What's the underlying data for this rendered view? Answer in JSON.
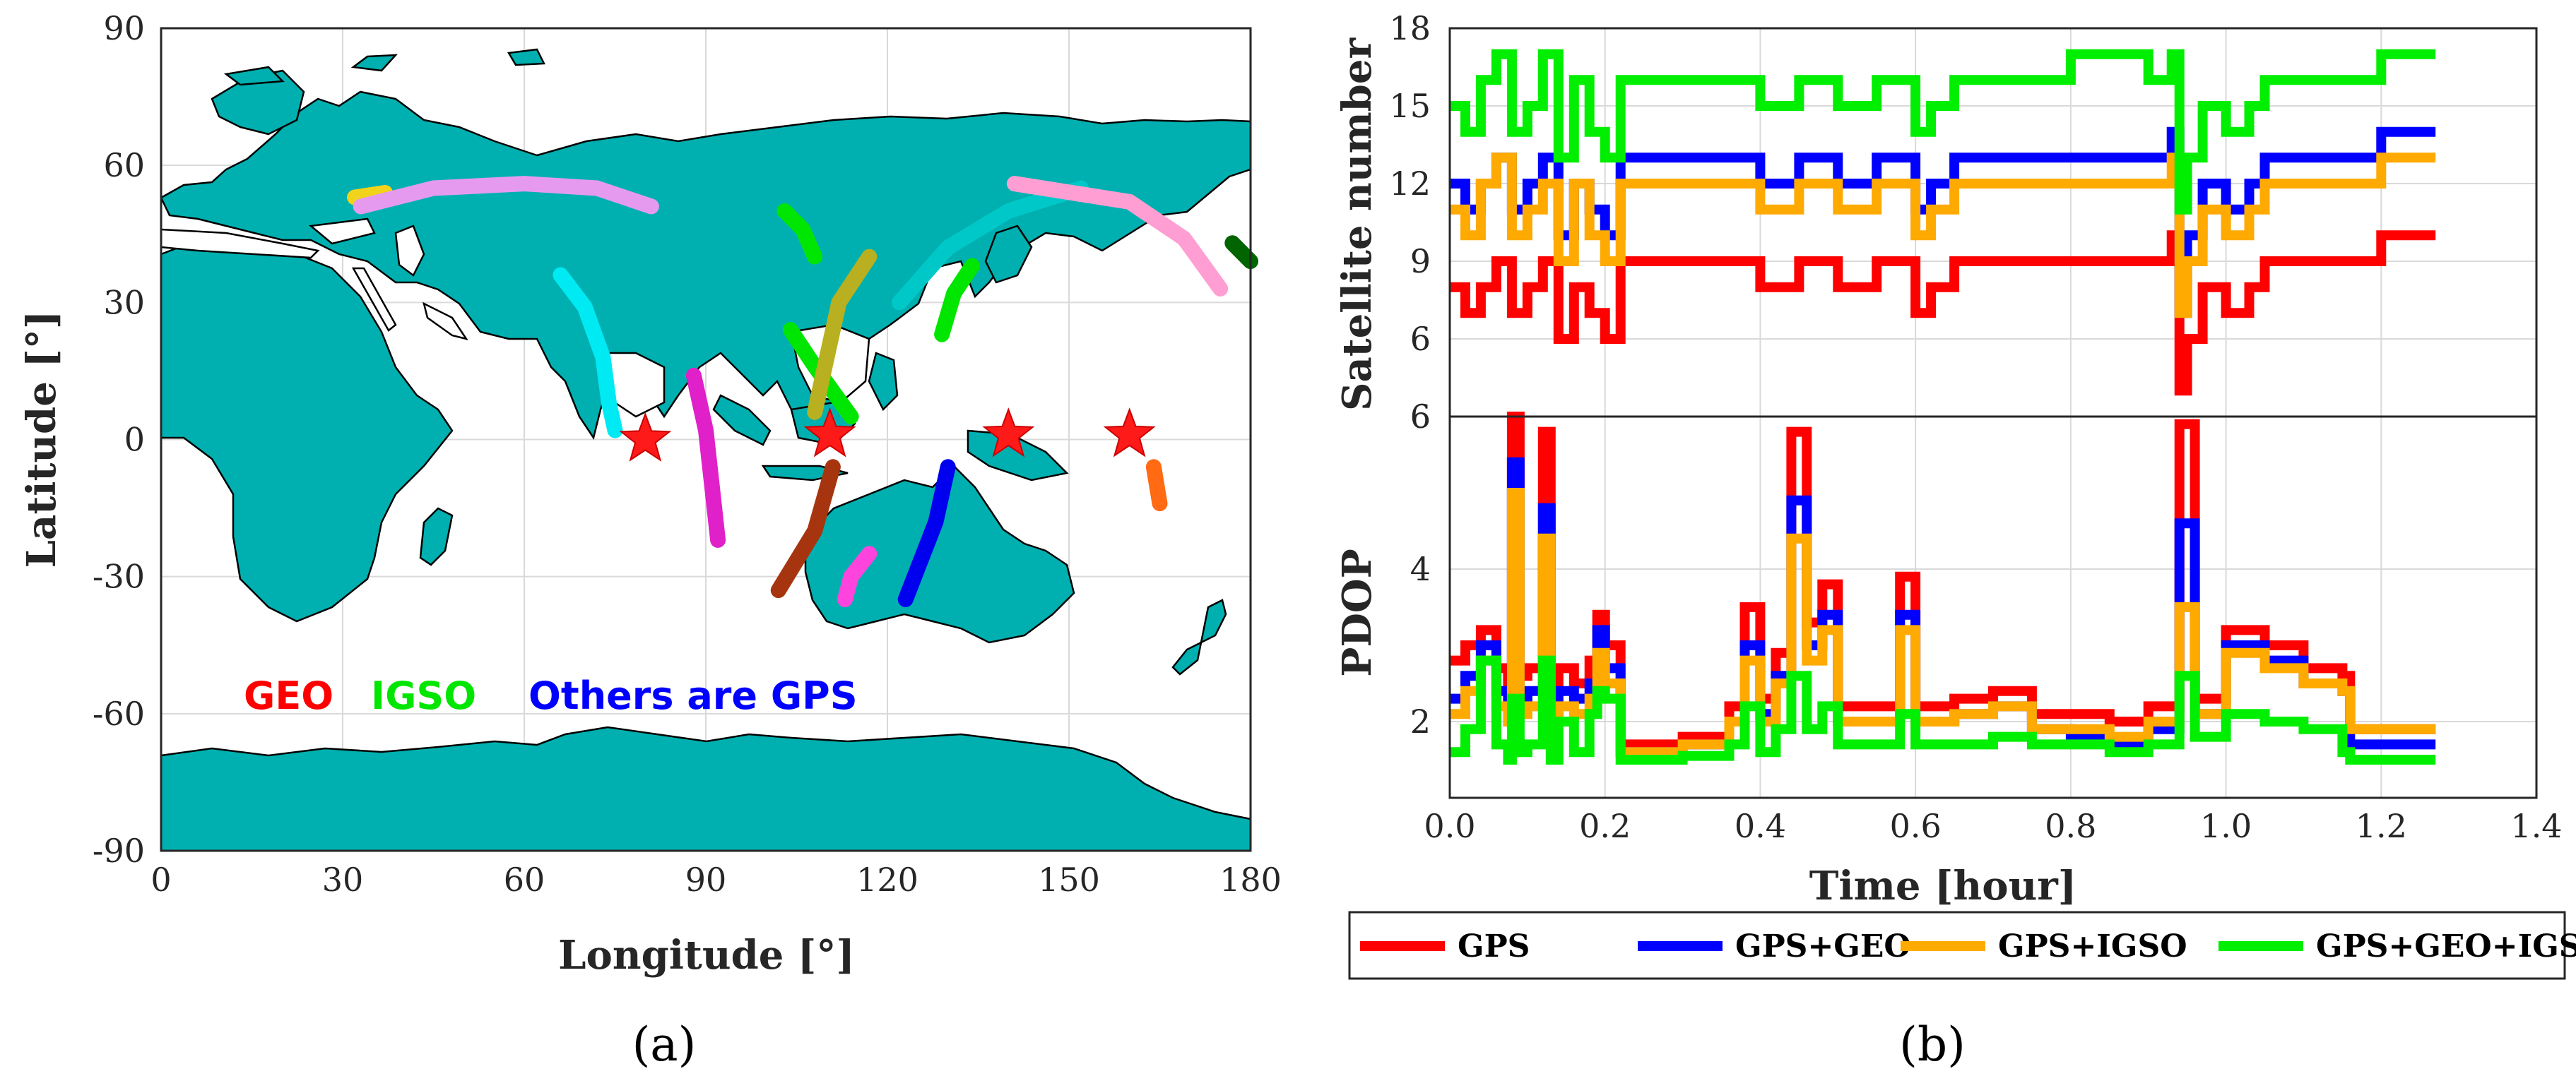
{
  "chart_data": [
    {
      "panel": "(a)",
      "type": "scatter",
      "subtype": "map",
      "xlabel": "Longitude [°]",
      "ylabel": "Latitude [°]",
      "xlim": [
        0,
        180
      ],
      "ylim": [
        -90,
        90
      ],
      "xticks": [
        "0",
        "30",
        "60",
        "90",
        "120",
        "150",
        "180"
      ],
      "yticks": [
        "90",
        "60",
        "30",
        "0",
        "-30",
        "-60",
        "-90"
      ],
      "legend": [
        {
          "label": "GEO",
          "color": "#ff0000"
        },
        {
          "label": "IGSO",
          "color": "#00e600"
        },
        {
          "label": "Others are GPS",
          "color": "#0000ff"
        }
      ],
      "geo_satellites": [
        {
          "lon": 80,
          "lat": 0
        },
        {
          "lon": 110.5,
          "lat": 1
        },
        {
          "lon": 140,
          "lat": 1
        },
        {
          "lon": 160,
          "lat": 1
        }
      ],
      "ground_tracks": [
        {
          "color": "#f2d31b",
          "points": [
            [
              32,
              53
            ],
            [
              37,
              54
            ]
          ]
        },
        {
          "color": "#e59af0",
          "points": [
            [
              33,
              51
            ],
            [
              45,
              55
            ],
            [
              60,
              56
            ],
            [
              72,
              55
            ],
            [
              81,
              51
            ]
          ]
        },
        {
          "color": "#00eaf4",
          "points": [
            [
              66,
              36
            ],
            [
              70,
              29
            ],
            [
              73,
              18
            ],
            [
              74,
              8
            ],
            [
              75,
              2
            ]
          ]
        },
        {
          "color": "#e020c8",
          "points": [
            [
              88,
              14
            ],
            [
              90,
              2
            ],
            [
              91,
              -10
            ],
            [
              92,
              -22
            ]
          ]
        },
        {
          "color": "#00e600",
          "points": [
            [
              103,
              50
            ],
            [
              106,
              46
            ],
            [
              108,
              40
            ]
          ]
        },
        {
          "color": "#00e600",
          "points": [
            [
              104,
              24
            ],
            [
              108,
              16
            ],
            [
              114,
              5
            ]
          ]
        },
        {
          "color": "#b8b020",
          "points": [
            [
              117,
              40
            ],
            [
              112,
              30
            ],
            [
              108,
              6
            ]
          ]
        },
        {
          "color": "#00c8c8",
          "points": [
            [
              122,
              30
            ],
            [
              130,
              42
            ],
            [
              140,
              50
            ],
            [
              152,
              55
            ]
          ]
        },
        {
          "color": "#ff9ed2",
          "points": [
            [
              141,
              56
            ],
            [
              160,
              52
            ],
            [
              169,
              44
            ],
            [
              175,
              33
            ]
          ]
        },
        {
          "color": "#00e600",
          "points": [
            [
              134,
              38
            ],
            [
              131,
              32
            ],
            [
              129,
              23
            ]
          ]
        },
        {
          "color": "#006400",
          "points": [
            [
              177,
              43
            ],
            [
              180,
              39
            ]
          ]
        },
        {
          "color": "#a6350f",
          "points": [
            [
              111,
              -6
            ],
            [
              108,
              -20
            ],
            [
              102,
              -33
            ]
          ]
        },
        {
          "color": "#ff44dd",
          "points": [
            [
              117,
              -25
            ],
            [
              114,
              -30
            ],
            [
              113,
              -35
            ]
          ]
        },
        {
          "color": "#0000ee",
          "points": [
            [
              130,
              -6
            ],
            [
              128,
              -18
            ],
            [
              123,
              -35
            ]
          ]
        },
        {
          "color": "#ff6a13",
          "points": [
            [
              164,
              -6
            ],
            [
              165,
              -14
            ]
          ]
        }
      ]
    },
    {
      "panel": "(b)",
      "type": "line",
      "subplot": "top",
      "ylabel": "Satellite number",
      "xlim": [
        0,
        1.4
      ],
      "ylim": [
        3,
        18
      ],
      "yticks": [
        "18",
        "15",
        "12",
        "9",
        "6",
        "6"
      ],
      "series": [
        {
          "name": "GPS",
          "color": "#ff0000",
          "x": [
            0.0,
            0.02,
            0.04,
            0.06,
            0.08,
            0.1,
            0.12,
            0.14,
            0.16,
            0.18,
            0.2,
            0.22,
            0.24,
            0.3,
            0.35,
            0.4,
            0.45,
            0.5,
            0.55,
            0.6,
            0.62,
            0.65,
            0.7,
            0.75,
            0.8,
            0.85,
            0.9,
            0.93,
            0.94,
            0.95,
            0.97,
            1.0,
            1.03,
            1.05,
            1.1,
            1.15,
            1.2,
            1.27
          ],
          "values": [
            8,
            7,
            8,
            9,
            7,
            8,
            9,
            6,
            8,
            7,
            6,
            9,
            9,
            9,
            9,
            8,
            9,
            8,
            9,
            7,
            8,
            9,
            9,
            9,
            9,
            9,
            9,
            10,
            4,
            6,
            8,
            7,
            8,
            9,
            9,
            9,
            10,
            10
          ]
        },
        {
          "name": "GPS+GEO",
          "color": "#0000ff",
          "x": [
            0.0,
            0.02,
            0.04,
            0.06,
            0.08,
            0.1,
            0.12,
            0.14,
            0.16,
            0.18,
            0.2,
            0.22,
            0.24,
            0.3,
            0.35,
            0.4,
            0.45,
            0.5,
            0.55,
            0.6,
            0.62,
            0.65,
            0.7,
            0.75,
            0.8,
            0.85,
            0.9,
            0.93,
            0.94,
            0.95,
            0.97,
            1.0,
            1.03,
            1.05,
            1.1,
            1.15,
            1.2,
            1.27
          ],
          "values": [
            12,
            11,
            12,
            13,
            11,
            12,
            13,
            10,
            12,
            11,
            10,
            13,
            13,
            13,
            13,
            12,
            13,
            12,
            13,
            11,
            12,
            13,
            13,
            13,
            13,
            13,
            13,
            14,
            7,
            10,
            12,
            11,
            12,
            13,
            13,
            13,
            14,
            14
          ]
        },
        {
          "name": "GPS+IGSO",
          "color": "#ffaa00",
          "x": [
            0.0,
            0.02,
            0.04,
            0.06,
            0.08,
            0.1,
            0.12,
            0.14,
            0.16,
            0.18,
            0.2,
            0.22,
            0.24,
            0.3,
            0.35,
            0.4,
            0.45,
            0.5,
            0.55,
            0.6,
            0.62,
            0.65,
            0.7,
            0.75,
            0.8,
            0.85,
            0.9,
            0.93,
            0.94,
            0.95,
            0.97,
            1.0,
            1.03,
            1.05,
            1.1,
            1.15,
            1.2,
            1.27
          ],
          "values": [
            11,
            10,
            12,
            13,
            10,
            11,
            12,
            9,
            12,
            10,
            9,
            12,
            12,
            12,
            12,
            11,
            12,
            11,
            12,
            10,
            11,
            12,
            12,
            12,
            12,
            12,
            12,
            13,
            7,
            9,
            11,
            10,
            11,
            12,
            12,
            12,
            13,
            13
          ]
        },
        {
          "name": "GPS+GEO+IGSO",
          "color": "#00ee00",
          "x": [
            0.0,
            0.02,
            0.04,
            0.06,
            0.08,
            0.1,
            0.12,
            0.14,
            0.16,
            0.18,
            0.2,
            0.22,
            0.24,
            0.3,
            0.35,
            0.4,
            0.45,
            0.5,
            0.55,
            0.6,
            0.62,
            0.65,
            0.7,
            0.75,
            0.8,
            0.85,
            0.9,
            0.93,
            0.94,
            0.95,
            0.97,
            1.0,
            1.03,
            1.05,
            1.1,
            1.15,
            1.2,
            1.27
          ],
          "values": [
            15,
            14,
            16,
            17,
            14,
            15,
            17,
            13,
            16,
            14,
            13,
            16,
            16,
            16,
            16,
            15,
            16,
            15,
            16,
            14,
            15,
            16,
            16,
            16,
            17,
            17,
            16,
            17,
            11,
            13,
            15,
            14,
            15,
            16,
            16,
            16,
            17,
            17
          ]
        }
      ]
    },
    {
      "panel": "(b)",
      "type": "line",
      "subplot": "bottom",
      "xlabel": "Time [hour]",
      "ylabel": "PDOP",
      "xlim": [
        0,
        1.4
      ],
      "ylim": [
        1,
        6
      ],
      "xticks": [
        "0.0",
        "0.2",
        "0.4",
        "0.6",
        "0.8",
        "1.0",
        "1.2",
        "1.4"
      ],
      "yticks": [
        "6",
        "4",
        "2"
      ],
      "legend_position": "bottom",
      "series": [
        {
          "name": "GPS",
          "color": "#ff0000",
          "x": [
            0.0,
            0.02,
            0.04,
            0.06,
            0.075,
            0.08,
            0.09,
            0.1,
            0.12,
            0.13,
            0.14,
            0.16,
            0.18,
            0.19,
            0.2,
            0.22,
            0.3,
            0.36,
            0.38,
            0.4,
            0.42,
            0.44,
            0.46,
            0.48,
            0.5,
            0.55,
            0.58,
            0.6,
            0.65,
            0.7,
            0.75,
            0.8,
            0.85,
            0.9,
            0.94,
            0.96,
            1.0,
            1.05,
            1.1,
            1.15,
            1.16,
            1.2,
            1.27
          ],
          "values": [
            2.8,
            3.0,
            3.2,
            2.7,
            2.5,
            6.0,
            2.6,
            2.7,
            5.8,
            2.4,
            2.7,
            2.5,
            2.8,
            3.4,
            3.0,
            1.7,
            1.8,
            2.2,
            3.5,
            2.3,
            2.9,
            5.8,
            3.3,
            3.8,
            2.2,
            2.2,
            3.9,
            2.2,
            2.3,
            2.4,
            2.1,
            2.1,
            2.0,
            2.2,
            5.9,
            2.3,
            3.2,
            3.0,
            2.7,
            2.6,
            1.9,
            1.9,
            1.9
          ]
        },
        {
          "name": "GPS+GEO",
          "color": "#0000ff",
          "x": [
            0.0,
            0.02,
            0.04,
            0.06,
            0.075,
            0.08,
            0.09,
            0.1,
            0.12,
            0.13,
            0.14,
            0.16,
            0.18,
            0.19,
            0.2,
            0.22,
            0.3,
            0.36,
            0.38,
            0.4,
            0.42,
            0.44,
            0.46,
            0.48,
            0.5,
            0.55,
            0.58,
            0.6,
            0.65,
            0.7,
            0.75,
            0.8,
            0.85,
            0.9,
            0.94,
            0.96,
            1.0,
            1.05,
            1.1,
            1.15,
            1.16,
            1.2,
            1.27
          ],
          "values": [
            2.3,
            2.6,
            3.0,
            2.4,
            2.2,
            5.4,
            2.3,
            2.4,
            4.8,
            2.1,
            2.4,
            2.3,
            2.5,
            3.2,
            2.7,
            1.6,
            1.7,
            2.0,
            3.0,
            2.1,
            2.6,
            4.9,
            3.0,
            3.4,
            2.0,
            2.0,
            3.4,
            2.0,
            2.1,
            2.2,
            1.9,
            1.8,
            1.7,
            1.9,
            4.6,
            2.1,
            3.0,
            2.8,
            2.5,
            2.4,
            1.7,
            1.7,
            1.7
          ]
        },
        {
          "name": "GPS+IGSO",
          "color": "#ffaa00",
          "x": [
            0.0,
            0.02,
            0.04,
            0.06,
            0.075,
            0.08,
            0.09,
            0.1,
            0.12,
            0.13,
            0.14,
            0.16,
            0.18,
            0.19,
            0.2,
            0.22,
            0.3,
            0.36,
            0.38,
            0.4,
            0.42,
            0.44,
            0.46,
            0.48,
            0.5,
            0.55,
            0.58,
            0.6,
            0.65,
            0.7,
            0.75,
            0.8,
            0.85,
            0.9,
            0.94,
            0.96,
            1.0,
            1.05,
            1.1,
            1.15,
            1.16,
            1.2,
            1.27
          ],
          "values": [
            2.1,
            2.4,
            2.8,
            2.2,
            2.0,
            5.0,
            2.1,
            2.2,
            4.4,
            2.0,
            2.2,
            2.1,
            2.3,
            2.9,
            2.5,
            1.6,
            1.7,
            2.0,
            2.8,
            2.0,
            2.5,
            4.4,
            2.8,
            3.2,
            2.0,
            2.0,
            3.2,
            2.0,
            2.1,
            2.2,
            1.9,
            1.9,
            1.8,
            2.0,
            3.5,
            2.1,
            2.9,
            2.7,
            2.5,
            2.4,
            1.9,
            1.9,
            1.9
          ]
        },
        {
          "name": "GPS+GEO+IGSO",
          "color": "#00ee00",
          "x": [
            0.0,
            0.02,
            0.04,
            0.06,
            0.075,
            0.08,
            0.09,
            0.1,
            0.12,
            0.13,
            0.14,
            0.16,
            0.18,
            0.19,
            0.2,
            0.22,
            0.3,
            0.36,
            0.38,
            0.4,
            0.42,
            0.44,
            0.46,
            0.48,
            0.5,
            0.55,
            0.58,
            0.6,
            0.65,
            0.7,
            0.75,
            0.8,
            0.85,
            0.9,
            0.94,
            0.96,
            1.0,
            1.05,
            1.1,
            1.15,
            1.16,
            1.2,
            1.27
          ],
          "values": [
            1.6,
            1.9,
            2.8,
            1.7,
            1.5,
            2.3,
            1.6,
            1.7,
            2.8,
            1.5,
            2.0,
            1.6,
            2.1,
            2.4,
            2.3,
            1.5,
            1.55,
            1.7,
            2.2,
            1.6,
            1.9,
            2.6,
            1.9,
            2.2,
            1.7,
            1.7,
            2.1,
            1.7,
            1.7,
            1.8,
            1.7,
            1.7,
            1.6,
            1.7,
            2.6,
            1.8,
            2.1,
            2.0,
            1.9,
            1.6,
            1.5,
            1.5,
            1.5
          ]
        }
      ]
    }
  ],
  "captions": {
    "a": "(a)",
    "b": "(b)"
  },
  "panel_b_legend": [
    "GPS",
    "GPS+GEO",
    "GPS+IGSO",
    "GPS+GEO+IGSO"
  ],
  "colors": {
    "land": "#00b0b0",
    "ocean": "#ffffff"
  }
}
